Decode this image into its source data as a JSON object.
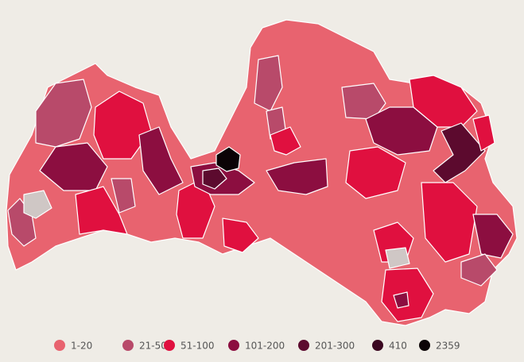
{
  "legend": {
    "items": [
      {
        "label": "1-20",
        "color": "#e8636f"
      },
      {
        "label": "21-50",
        "color": "#b84a6a"
      },
      {
        "label": "51-100",
        "color": "#e0103f"
      },
      {
        "label": "101-200",
        "color": "#8c0e40"
      },
      {
        "label": "201-300",
        "color": "#5c0a2e"
      },
      {
        "label": "410",
        "color": "#3a0620"
      },
      {
        "label": "2359",
        "color": "#0b0306"
      }
    ]
  }
}
